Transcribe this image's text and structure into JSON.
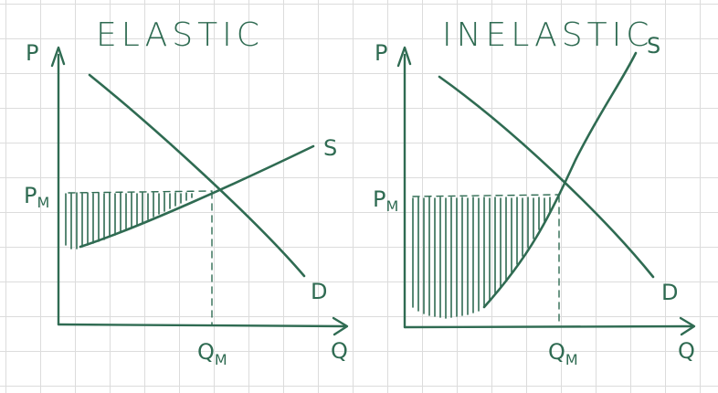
{
  "panels": [
    {
      "title": "ELASTIC",
      "y_axis_label": "P",
      "x_axis_label": "Q",
      "price_marker": {
        "main": "P",
        "sub": "M"
      },
      "quantity_marker": {
        "main": "Q",
        "sub": "M"
      },
      "demand_label": "D",
      "supply_label": "S"
    },
    {
      "title": "INELASTIC",
      "y_axis_label": "P",
      "x_axis_label": "Q",
      "price_marker": {
        "main": "P",
        "sub": "M"
      },
      "quantity_marker": {
        "main": "Q",
        "sub": "M"
      },
      "demand_label": "D",
      "supply_label": "S"
    }
  ],
  "colors": {
    "ink": "#2f6b52",
    "grid": "#dcdcdc",
    "background": "#ffffff"
  }
}
